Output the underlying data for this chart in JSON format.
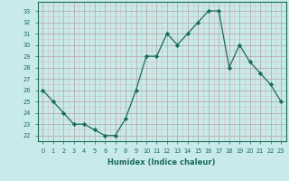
{
  "x": [
    0,
    1,
    2,
    3,
    4,
    5,
    6,
    7,
    8,
    9,
    10,
    11,
    12,
    13,
    14,
    15,
    16,
    17,
    18,
    19,
    20,
    21,
    22,
    23
  ],
  "y": [
    26,
    25,
    24,
    23,
    23,
    22.5,
    22,
    22,
    23.5,
    26,
    29,
    29,
    31,
    30,
    31,
    32,
    33,
    33,
    28,
    30,
    28.5,
    27.5,
    26.5,
    25
  ],
  "line_color": "#1a6b5a",
  "marker": "D",
  "marker_size": 2.2,
  "bg_color": "#c8eaea",
  "grid_color_major": "#b8a0a0",
  "grid_color_minor": "#d4c0c0",
  "xlabel": "Humidex (Indice chaleur)",
  "xlim": [
    -0.5,
    23.5
  ],
  "ylim": [
    21.7,
    33.8
  ],
  "yticks": [
    22,
    23,
    24,
    25,
    26,
    27,
    28,
    29,
    30,
    31,
    32,
    33
  ],
  "xticks": [
    0,
    1,
    2,
    3,
    4,
    5,
    6,
    7,
    8,
    9,
    10,
    11,
    12,
    13,
    14,
    15,
    16,
    17,
    18,
    19,
    20,
    21,
    22,
    23
  ]
}
